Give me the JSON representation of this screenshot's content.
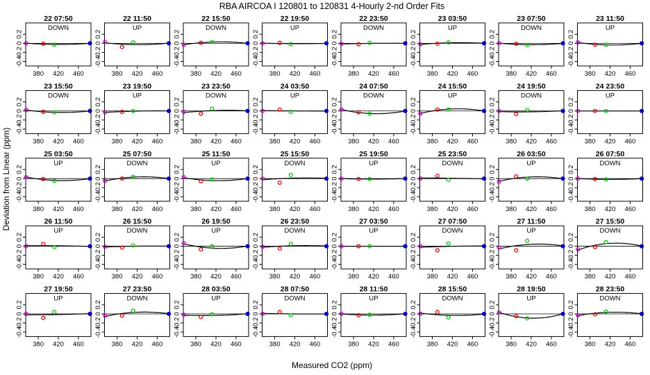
{
  "chart_data": {
    "type": "scatter",
    "title": "RBA   AIRCOA I   120801 to 120831   4-Hourly 2-nd Order Fits",
    "xlabel": "Measured CO2 (ppm)",
    "ylabel": "Deviation from Linear (ppm)",
    "xlim": [
      355,
      485
    ],
    "ylim": [
      -0.5,
      0.45
    ],
    "xticks": [
      380,
      420,
      460
    ],
    "yticks": [
      -0.4,
      -0.2,
      0.0,
      0.2
    ],
    "ytick_labels": [
      "-0.4",
      "-0.2",
      "0",
      "0.2"
    ],
    "grid": false,
    "series_names": [
      "purple",
      "red",
      "green",
      "blue"
    ],
    "series_x": [
      356,
      390,
      412,
      483
    ],
    "colors": {
      "purple": "#cc00cc",
      "red": "#ee0000",
      "green": "#00cc00",
      "blue": "#0000cc",
      "fit": "#000000"
    },
    "panels": [
      {
        "label": "22 07:50",
        "dir": "DOWN",
        "y": [
          0.0,
          -0.01,
          -0.03,
          0.0
        ]
      },
      {
        "label": "22 11:50",
        "dir": "UP",
        "y": [
          0.03,
          -0.08,
          0.02,
          0.0
        ]
      },
      {
        "label": "22 15:50",
        "dir": "DOWN",
        "y": [
          -0.03,
          0.01,
          0.03,
          0.0
        ]
      },
      {
        "label": "22 19:50",
        "dir": "UP",
        "y": [
          0.0,
          0.01,
          -0.02,
          0.0
        ]
      },
      {
        "label": "22 23:50",
        "dir": "DOWN",
        "y": [
          -0.01,
          -0.02,
          0.01,
          0.0
        ]
      },
      {
        "label": "23 03:50",
        "dir": "UP",
        "y": [
          -0.02,
          -0.01,
          0.02,
          0.0
        ]
      },
      {
        "label": "23 07:50",
        "dir": "DOWN",
        "y": [
          0.0,
          -0.01,
          -0.04,
          0.0
        ]
      },
      {
        "label": "23 11:50",
        "dir": "UP",
        "y": [
          0.02,
          -0.03,
          -0.03,
          0.0
        ]
      },
      {
        "label": "23 15:50",
        "dir": "DOWN",
        "y": [
          0.02,
          -0.02,
          -0.03,
          0.0
        ]
      },
      {
        "label": "23 19:50",
        "dir": "UP",
        "y": [
          -0.03,
          -0.02,
          0.0,
          0.0
        ]
      },
      {
        "label": "23 23:50",
        "dir": "DOWN",
        "y": [
          -0.02,
          -0.06,
          0.05,
          0.0
        ]
      },
      {
        "label": "24 03:50",
        "dir": "UP",
        "y": [
          0.0,
          0.03,
          -0.02,
          0.0
        ]
      },
      {
        "label": "24 07:50",
        "dir": "DOWN",
        "y": [
          0.03,
          -0.03,
          -0.06,
          0.0
        ]
      },
      {
        "label": "24 15:50",
        "dir": "UP",
        "y": [
          -0.06,
          0.03,
          0.03,
          0.0
        ]
      },
      {
        "label": "24 19:50",
        "dir": "DOWN",
        "y": [
          0.0,
          -0.07,
          0.02,
          0.0
        ]
      },
      {
        "label": "24 23:50",
        "dir": "UP",
        "y": [
          0.0,
          0.0,
          0.0,
          0.0
        ]
      },
      {
        "label": "25 03:50",
        "dir": "UP",
        "y": [
          0.03,
          -0.01,
          -0.05,
          0.0
        ]
      },
      {
        "label": "25 07:50",
        "dir": "DOWN",
        "y": [
          -0.05,
          0.0,
          0.04,
          0.0
        ]
      },
      {
        "label": "25 11:50",
        "dir": "UP",
        "y": [
          0.03,
          -0.06,
          -0.02,
          0.0
        ]
      },
      {
        "label": "25 15:50",
        "dir": "DOWN",
        "y": [
          0.0,
          -0.09,
          0.08,
          0.0
        ]
      },
      {
        "label": "25 19:50",
        "dir": "UP",
        "y": [
          0.0,
          -0.01,
          -0.01,
          0.0
        ]
      },
      {
        "label": "25 23:50",
        "dir": "DOWN",
        "y": [
          0.0,
          0.06,
          -0.03,
          0.0
        ]
      },
      {
        "label": "26 03:50",
        "dir": "UP",
        "y": [
          -0.07,
          0.05,
          0.0,
          0.0
        ]
      },
      {
        "label": "26 07:50",
        "dir": "DOWN",
        "y": [
          0.0,
          -0.01,
          -0.02,
          0.0
        ]
      },
      {
        "label": "26 11:50",
        "dir": "UP",
        "y": [
          0.0,
          0.05,
          -0.02,
          0.0
        ]
      },
      {
        "label": "26 15:50",
        "dir": "DOWN",
        "y": [
          -0.01,
          -0.03,
          0.02,
          0.0
        ]
      },
      {
        "label": "26 19:50",
        "dir": "UP",
        "y": [
          0.07,
          -0.07,
          0.0,
          0.0
        ]
      },
      {
        "label": "26 23:50",
        "dir": "DOWN",
        "y": [
          -0.01,
          -0.05,
          0.05,
          0.0
        ]
      },
      {
        "label": "27 03:50",
        "dir": "UP",
        "y": [
          0.0,
          0.0,
          0.0,
          0.0
        ]
      },
      {
        "label": "27 07:50",
        "dir": "DOWN",
        "y": [
          0.0,
          -0.09,
          0.06,
          0.0
        ]
      },
      {
        "label": "27 11:50",
        "dir": "UP",
        "y": [
          -0.03,
          -0.09,
          0.12,
          0.0
        ]
      },
      {
        "label": "27 15:50",
        "dir": "DOWN",
        "y": [
          -0.07,
          -0.02,
          0.09,
          0.0
        ]
      },
      {
        "label": "27 19:50",
        "dir": "UP",
        "y": [
          0.0,
          -0.09,
          0.04,
          0.0
        ]
      },
      {
        "label": "27 23:50",
        "dir": "DOWN",
        "y": [
          -0.04,
          -0.04,
          0.07,
          0.0
        ]
      },
      {
        "label": "28 03:50",
        "dir": "UP",
        "y": [
          -0.02,
          -0.07,
          -0.01,
          0.0
        ]
      },
      {
        "label": "28 07:50",
        "dir": "DOWN",
        "y": [
          0.0,
          0.04,
          -0.03,
          0.0
        ]
      },
      {
        "label": "28 11:50",
        "dir": "UP",
        "y": [
          0.0,
          -0.03,
          -0.02,
          0.0
        ]
      },
      {
        "label": "28 15:50",
        "dir": "DOWN",
        "y": [
          0.0,
          0.04,
          -0.08,
          0.0
        ]
      },
      {
        "label": "28 19:50",
        "dir": "UP",
        "y": [
          0.03,
          -0.05,
          -0.1,
          0.0
        ]
      },
      {
        "label": "28 23:50",
        "dir": "DOWN",
        "y": [
          -0.03,
          -0.01,
          0.05,
          0.0
        ]
      }
    ]
  }
}
